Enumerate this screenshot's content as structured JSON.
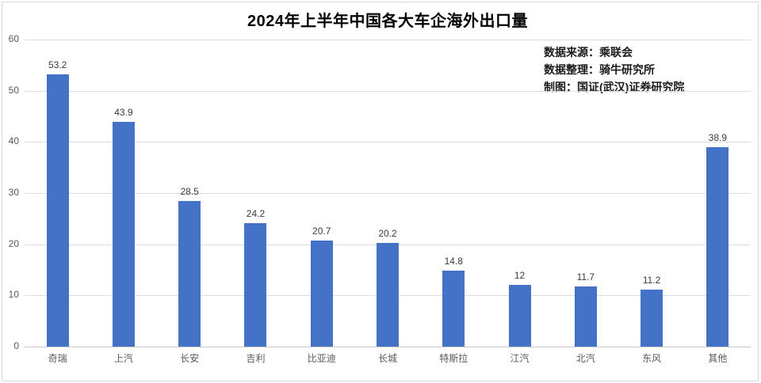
{
  "chart_data": {
    "type": "bar",
    "title": "2024年上半年中国各大车企海外出口量",
    "categories": [
      "奇瑞",
      "上汽",
      "长安",
      "吉利",
      "比亚迪",
      "长城",
      "特斯拉",
      "江汽",
      "北汽",
      "东风",
      "其他"
    ],
    "values": [
      53.2,
      43.9,
      28.5,
      24.2,
      20.7,
      20.2,
      14.8,
      12,
      11.7,
      11.2,
      38.9
    ],
    "data_labels": [
      "53.2",
      "43.9",
      "28.5",
      "24.2",
      "20.7",
      "20.2",
      "14.8",
      "12",
      "11.7",
      "11.2",
      "38.9"
    ],
    "xlabel": "",
    "ylabel": "",
    "ylim": [
      0,
      60
    ],
    "yticks": [
      0,
      10,
      20,
      30,
      40,
      50,
      60
    ],
    "grid": true,
    "legend": "none",
    "bar_color": "#4472C4",
    "annotations": [
      "数据来源：乘联会",
      "数据整理：骑牛研究所",
      "制图：国证(武汉)证券研究院"
    ]
  }
}
